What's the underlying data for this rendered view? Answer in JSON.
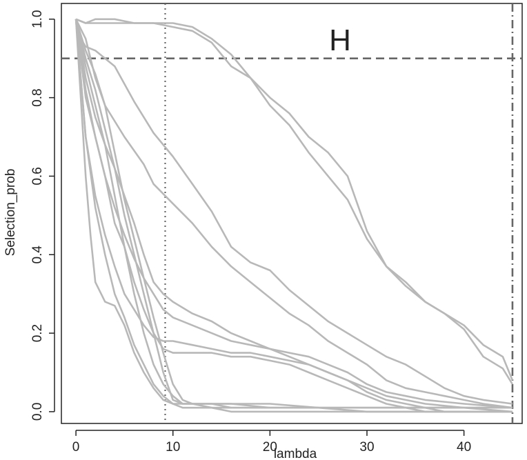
{
  "chart_data": {
    "type": "line",
    "title": "",
    "xlabel": "lambda",
    "ylabel": "Selection_prob",
    "annotation": "H",
    "xlim": [
      -1.5,
      46
    ],
    "ylim": [
      -0.03,
      1.04
    ],
    "x_ticks": [
      0,
      10,
      20,
      30,
      40
    ],
    "y_ticks": [
      0.0,
      0.2,
      0.4,
      0.6,
      0.8,
      1.0
    ],
    "y_tick_labels": [
      "0.0",
      "0.2",
      "0.4",
      "0.6",
      "0.8",
      "1.0"
    ],
    "grid": false,
    "legend": "none",
    "colors": {
      "series": "#b8b8b8",
      "reference": "#666666",
      "axis": "#222222"
    },
    "reference_lines": [
      {
        "orientation": "horizontal",
        "value": 0.9,
        "style": "dashed"
      },
      {
        "orientation": "vertical",
        "value": 9.2,
        "style": "dotted"
      },
      {
        "orientation": "vertical",
        "value": 45.0,
        "style": "dashdot"
      }
    ],
    "series": [
      {
        "x": [
          0,
          1,
          2,
          5,
          8,
          10,
          12,
          14,
          16,
          18,
          20,
          22,
          24,
          26,
          28,
          30,
          32,
          34,
          36,
          38,
          40,
          42,
          44,
          45
        ],
        "y": [
          1.0,
          0.99,
          0.99,
          0.99,
          0.99,
          0.98,
          0.97,
          0.94,
          0.88,
          0.85,
          0.8,
          0.76,
          0.7,
          0.66,
          0.6,
          0.46,
          0.37,
          0.33,
          0.28,
          0.25,
          0.22,
          0.17,
          0.14,
          0.08
        ]
      },
      {
        "x": [
          0,
          1,
          2,
          4,
          6,
          8,
          10,
          12,
          14,
          16,
          18,
          20,
          22,
          24,
          26,
          28,
          30,
          32,
          34,
          36,
          38,
          40,
          42,
          44,
          45
        ],
        "y": [
          1.0,
          0.99,
          1.0,
          1.0,
          0.99,
          0.99,
          0.99,
          0.98,
          0.95,
          0.91,
          0.85,
          0.78,
          0.73,
          0.66,
          0.6,
          0.54,
          0.44,
          0.37,
          0.32,
          0.28,
          0.25,
          0.21,
          0.14,
          0.11,
          0.07
        ]
      },
      {
        "x": [
          0,
          0.5,
          1,
          2,
          4,
          6,
          8,
          10,
          12,
          14,
          16,
          18,
          20,
          22,
          24,
          26,
          28,
          30,
          32,
          34,
          36,
          38,
          40,
          42,
          45
        ],
        "y": [
          1.0,
          0.95,
          0.93,
          0.92,
          0.88,
          0.79,
          0.71,
          0.65,
          0.58,
          0.51,
          0.42,
          0.38,
          0.36,
          0.31,
          0.27,
          0.23,
          0.2,
          0.17,
          0.14,
          0.12,
          0.09,
          0.06,
          0.04,
          0.03,
          0.02
        ]
      },
      {
        "x": [
          0,
          1,
          2,
          3,
          5,
          7,
          8,
          10,
          12,
          14,
          16,
          18,
          20,
          22,
          24,
          26,
          28,
          30,
          32,
          34,
          36,
          38,
          40,
          42,
          45
        ],
        "y": [
          1.0,
          0.95,
          0.85,
          0.78,
          0.7,
          0.63,
          0.58,
          0.53,
          0.48,
          0.42,
          0.37,
          0.33,
          0.29,
          0.25,
          0.22,
          0.18,
          0.15,
          0.12,
          0.08,
          0.06,
          0.05,
          0.04,
          0.03,
          0.02,
          0.01
        ]
      },
      {
        "x": [
          0,
          1,
          2,
          3,
          4,
          5,
          6,
          7,
          8,
          9,
          10,
          12,
          14,
          16,
          18,
          20,
          22,
          24,
          26,
          28,
          30,
          32,
          34,
          36,
          40,
          45
        ],
        "y": [
          1.0,
          0.85,
          0.75,
          0.68,
          0.62,
          0.55,
          0.48,
          0.4,
          0.33,
          0.3,
          0.28,
          0.25,
          0.23,
          0.2,
          0.18,
          0.16,
          0.15,
          0.14,
          0.12,
          0.1,
          0.07,
          0.05,
          0.04,
          0.03,
          0.02,
          0.01
        ]
      },
      {
        "x": [
          0,
          1,
          2,
          3,
          4,
          5,
          6,
          7,
          8,
          9,
          10,
          12,
          14,
          16,
          18,
          20,
          22,
          24,
          26,
          28,
          30,
          32,
          34,
          36,
          40,
          45
        ],
        "y": [
          1.0,
          0.82,
          0.7,
          0.6,
          0.52,
          0.45,
          0.39,
          0.34,
          0.3,
          0.26,
          0.24,
          0.22,
          0.2,
          0.18,
          0.17,
          0.16,
          0.14,
          0.12,
          0.1,
          0.08,
          0.06,
          0.04,
          0.03,
          0.02,
          0.01,
          0.0
        ]
      },
      {
        "x": [
          0,
          1,
          2,
          3,
          4,
          5,
          6,
          7,
          8,
          9,
          10,
          12,
          14,
          16,
          18,
          20,
          22,
          24,
          26,
          28,
          30,
          32,
          34,
          36,
          38,
          45
        ],
        "y": [
          1.0,
          0.7,
          0.55,
          0.45,
          0.37,
          0.3,
          0.26,
          0.22,
          0.19,
          0.18,
          0.18,
          0.17,
          0.16,
          0.15,
          0.15,
          0.14,
          0.13,
          0.12,
          0.1,
          0.08,
          0.05,
          0.03,
          0.02,
          0.01,
          0.0,
          0.0
        ]
      },
      {
        "x": [
          0,
          0.5,
          1,
          2,
          3,
          4,
          5,
          6,
          7,
          8,
          9,
          10,
          12,
          14,
          16,
          18,
          20,
          22,
          24,
          26,
          28,
          30,
          32,
          34,
          36,
          38,
          45
        ],
        "y": [
          1.0,
          0.9,
          0.8,
          0.7,
          0.6,
          0.48,
          0.42,
          0.33,
          0.26,
          0.2,
          0.16,
          0.15,
          0.15,
          0.15,
          0.14,
          0.14,
          0.13,
          0.12,
          0.1,
          0.08,
          0.06,
          0.04,
          0.02,
          0.01,
          0.0,
          0.0,
          0.0
        ]
      },
      {
        "x": [
          0,
          1,
          2,
          3,
          4,
          5,
          6,
          7,
          8,
          9,
          10,
          11,
          12,
          14,
          16,
          20,
          25,
          30,
          35,
          40,
          45
        ],
        "y": [
          1.0,
          0.9,
          0.82,
          0.72,
          0.62,
          0.5,
          0.4,
          0.3,
          0.2,
          0.1,
          0.03,
          0.02,
          0.02,
          0.02,
          0.01,
          0.01,
          0.01,
          0.01,
          0.01,
          0.01,
          0.01
        ]
      },
      {
        "x": [
          0,
          1,
          2,
          3,
          4,
          5,
          6,
          7,
          8,
          9,
          10,
          11,
          12,
          14,
          16,
          20,
          25,
          30,
          35,
          40,
          45
        ],
        "y": [
          1.0,
          0.92,
          0.86,
          0.78,
          0.66,
          0.54,
          0.44,
          0.34,
          0.24,
          0.15,
          0.07,
          0.03,
          0.02,
          0.02,
          0.02,
          0.01,
          0.01,
          0.01,
          0.01,
          0.01,
          0.01
        ]
      },
      {
        "x": [
          0,
          1,
          2,
          3,
          4,
          5,
          6,
          7,
          8,
          9,
          10,
          11,
          12,
          14,
          16,
          20,
          25,
          30,
          35,
          40,
          45
        ],
        "y": [
          1.0,
          0.88,
          0.78,
          0.68,
          0.55,
          0.42,
          0.3,
          0.2,
          0.12,
          0.07,
          0.04,
          0.02,
          0.02,
          0.02,
          0.02,
          0.02,
          0.01,
          0.01,
          0.01,
          0.01,
          0.01
        ]
      },
      {
        "x": [
          0,
          0.5,
          1,
          1.5,
          2,
          3,
          4,
          5,
          6,
          7,
          8,
          9,
          10,
          11,
          12,
          14,
          16,
          20,
          25,
          30,
          35,
          40,
          45
        ],
        "y": [
          1.0,
          0.8,
          0.6,
          0.45,
          0.33,
          0.28,
          0.27,
          0.22,
          0.15,
          0.1,
          0.06,
          0.03,
          0.02,
          0.01,
          0.01,
          0.01,
          0.0,
          0.0,
          0.0,
          0.0,
          0.0,
          0.0,
          0.0
        ]
      },
      {
        "x": [
          0,
          0.5,
          1,
          2,
          3,
          4,
          5,
          6,
          7,
          8,
          9,
          10,
          12,
          14,
          16,
          20,
          25,
          30,
          35,
          40,
          45
        ],
        "y": [
          1.0,
          0.85,
          0.7,
          0.52,
          0.4,
          0.3,
          0.24,
          0.17,
          0.12,
          0.07,
          0.04,
          0.02,
          0.02,
          0.01,
          0.01,
          0.01,
          0.01,
          0.0,
          0.0,
          0.0,
          0.0
        ]
      }
    ]
  }
}
